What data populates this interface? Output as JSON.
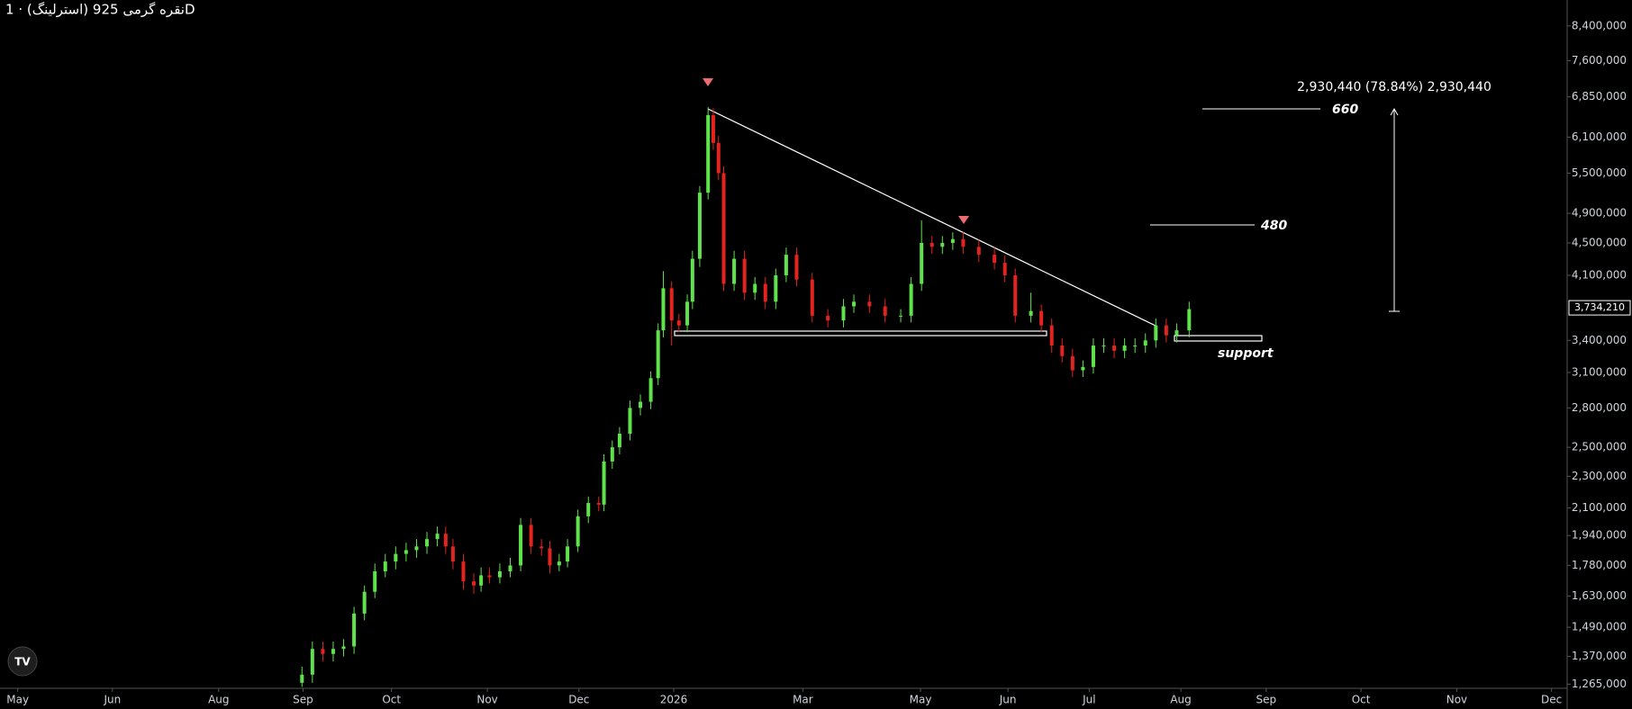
{
  "chart_data": {
    "type": "candlestick",
    "title": "نقره گرمی 925 (استرلینگ) · 1D",
    "log_scale": true,
    "up_color": "#5fe34a",
    "down_color": "#e3231f",
    "xlim": [
      0,
      1505
    ],
    "ylim": [
      1250000,
      9050000
    ],
    "xticks": [
      {
        "value": 17,
        "label": "May"
      },
      {
        "value": 108,
        "label": "Jun"
      },
      {
        "value": 210,
        "label": "Aug"
      },
      {
        "value": 291,
        "label": "Sep"
      },
      {
        "value": 376,
        "label": "Oct"
      },
      {
        "value": 468,
        "label": "Nov"
      },
      {
        "value": 556,
        "label": "Dec"
      },
      {
        "value": 647,
        "label": "2026"
      },
      {
        "value": 771,
        "label": "Mar"
      },
      {
        "value": 884,
        "label": "May"
      },
      {
        "value": 968,
        "label": "Jun"
      },
      {
        "value": 1046,
        "label": "Jul"
      },
      {
        "value": 1134,
        "label": "Aug"
      },
      {
        "value": 1216,
        "label": "Sep"
      },
      {
        "value": 1307,
        "label": "Oct"
      },
      {
        "value": 1399,
        "label": "Nov"
      },
      {
        "value": 1490,
        "label": "Dec"
      }
    ],
    "yticks": [
      {
        "value": 1265000,
        "label": "1,265,000"
      },
      {
        "value": 1370000,
        "label": "1,370,000"
      },
      {
        "value": 1490000,
        "label": "1,490,000"
      },
      {
        "value": 1630000,
        "label": "1,630,000"
      },
      {
        "value": 1780000,
        "label": "1,780,000"
      },
      {
        "value": 1940000,
        "label": "1,940,000"
      },
      {
        "value": 2100000,
        "label": "2,100,000"
      },
      {
        "value": 2300000,
        "label": "2,300,000"
      },
      {
        "value": 2500000,
        "label": "2,500,000"
      },
      {
        "value": 2800000,
        "label": "2,800,000"
      },
      {
        "value": 3100000,
        "label": "3,100,000"
      },
      {
        "value": 3400000,
        "label": "3,400,000"
      },
      {
        "value": 4100000,
        "label": "4,100,000"
      },
      {
        "value": 4500000,
        "label": "4,500,000"
      },
      {
        "value": 4900000,
        "label": "4,900,000"
      },
      {
        "value": 5500000,
        "label": "5,500,000"
      },
      {
        "value": 6100000,
        "label": "6,100,000"
      },
      {
        "value": 6850000,
        "label": "6,850,000"
      },
      {
        "value": 7600000,
        "label": "7,600,000"
      },
      {
        "value": 8400000,
        "label": "8,400,000"
      }
    ],
    "last_price": {
      "value": 3734210,
      "label": "3,734,210"
    },
    "annotations": {
      "measure": "2,930,440 (78.84%) 2,930,440",
      "level_high": "660",
      "level_mid": "480",
      "support": "support"
    },
    "x": [
      290,
      300,
      310,
      320,
      330,
      340,
      350,
      360,
      370,
      380,
      390,
      400,
      410,
      420,
      428,
      435,
      445,
      455,
      462,
      470,
      480,
      490,
      500,
      510,
      520,
      528,
      537,
      545,
      555,
      565,
      575,
      580,
      588,
      595,
      605,
      615,
      625,
      632,
      637,
      645,
      652,
      660,
      665,
      672,
      680,
      685,
      690,
      695,
      705,
      715,
      725,
      735,
      745,
      755,
      765,
      780,
      795,
      810,
      820,
      835,
      850,
      865,
      875,
      885,
      895,
      905,
      915,
      925,
      940,
      955,
      965,
      975,
      990,
      1000,
      1010,
      1020,
      1030,
      1040,
      1050,
      1060,
      1070,
      1080,
      1090,
      1100,
      1110,
      1120,
      1130,
      1142
    ],
    "open": [
      1270000,
      1300000,
      1400000,
      1380000,
      1400000,
      1410000,
      1550000,
      1650000,
      1750000,
      1800000,
      1840000,
      1860000,
      1880000,
      1920000,
      1950000,
      1880000,
      1800000,
      1700000,
      1680000,
      1730000,
      1720000,
      1750000,
      1780000,
      2000000,
      1880000,
      1870000,
      1780000,
      1800000,
      1880000,
      2050000,
      2130000,
      2120000,
      2400000,
      2500000,
      2600000,
      2800000,
      2850000,
      3050000,
      3500000,
      3950000,
      3600000,
      3550000,
      3800000,
      4300000,
      5200000,
      6500000,
      6000000,
      5500000,
      4000000,
      4300000,
      3900000,
      4000000,
      3800000,
      4100000,
      4350000,
      4050000,
      3650000,
      3600000,
      3750000,
      3800000,
      3750000,
      3650000,
      3650000,
      4000000,
      4500000,
      4450000,
      4500000,
      4550000,
      4450000,
      4350000,
      4250000,
      4100000,
      3650000,
      3700000,
      3550000,
      3350000,
      3250000,
      3120000,
      3150000,
      3350000,
      3350000,
      3300000,
      3350000,
      3350000,
      3400000,
      3550000,
      3450000,
      3500000
    ],
    "high": [
      1330000,
      1430000,
      1430000,
      1430000,
      1440000,
      1580000,
      1680000,
      1790000,
      1840000,
      1880000,
      1900000,
      1920000,
      1960000,
      1990000,
      1990000,
      1920000,
      1840000,
      1740000,
      1770000,
      1770000,
      1790000,
      1820000,
      2040000,
      2040000,
      1920000,
      1910000,
      1840000,
      1920000,
      2090000,
      2170000,
      2170000,
      2450000,
      2550000,
      2650000,
      2860000,
      2910000,
      3110000,
      3570000,
      4150000,
      4030000,
      3670000,
      3880000,
      4400000,
      5300000,
      6650000,
      6630000,
      6120000,
      5610000,
      4400000,
      4400000,
      4080000,
      4080000,
      4180000,
      4440000,
      4440000,
      4130000,
      3720000,
      3830000,
      3880000,
      3880000,
      3830000,
      3720000,
      4080000,
      4800000,
      4590000,
      4590000,
      4640000,
      4640000,
      4540000,
      4440000,
      4340000,
      4180000,
      3900000,
      3770000,
      3620000,
      3420000,
      3320000,
      3210000,
      3420000,
      3420000,
      3420000,
      3420000,
      3420000,
      3470000,
      3620000,
      3620000,
      3570000,
      3800000
    ],
    "low": [
      1255000,
      1270000,
      1350000,
      1350000,
      1370000,
      1380000,
      1520000,
      1620000,
      1720000,
      1760000,
      1800000,
      1820000,
      1840000,
      1880000,
      1840000,
      1760000,
      1660000,
      1640000,
      1650000,
      1690000,
      1690000,
      1720000,
      1750000,
      1840000,
      1830000,
      1740000,
      1750000,
      1770000,
      1850000,
      2010000,
      2080000,
      2080000,
      2350000,
      2450000,
      2550000,
      2740000,
      2790000,
      2990000,
      3430000,
      3350000,
      3480000,
      3480000,
      3720000,
      4200000,
      5100000,
      5880000,
      5390000,
      3920000,
      3920000,
      3820000,
      3820000,
      3720000,
      3720000,
      4020000,
      3970000,
      3580000,
      3530000,
      3530000,
      3680000,
      3680000,
      3580000,
      3580000,
      3580000,
      3920000,
      4360000,
      4360000,
      4410000,
      4360000,
      4260000,
      4170000,
      4020000,
      3580000,
      3580000,
      3480000,
      3280000,
      3190000,
      3060000,
      3060000,
      3090000,
      3280000,
      3230000,
      3230000,
      3280000,
      3280000,
      3330000,
      3380000,
      3380000,
      3430000
    ],
    "close": [
      1300000,
      1400000,
      1380000,
      1400000,
      1410000,
      1550000,
      1650000,
      1750000,
      1800000,
      1840000,
      1860000,
      1880000,
      1920000,
      1950000,
      1880000,
      1800000,
      1700000,
      1680000,
      1730000,
      1720000,
      1750000,
      1780000,
      2000000,
      1880000,
      1870000,
      1780000,
      1800000,
      1880000,
      2050000,
      2130000,
      2120000,
      2400000,
      2500000,
      2600000,
      2800000,
      2850000,
      3050000,
      3500000,
      3950000,
      3600000,
      3550000,
      3800000,
      4300000,
      5200000,
      6500000,
      6000000,
      5500000,
      4000000,
      4300000,
      3900000,
      4000000,
      3800000,
      4100000,
      4350000,
      4050000,
      3650000,
      3600000,
      3750000,
      3800000,
      3750000,
      3650000,
      3650000,
      4000000,
      4500000,
      4450000,
      4500000,
      4550000,
      4450000,
      4350000,
      4250000,
      4100000,
      3650000,
      3700000,
      3550000,
      3350000,
      3250000,
      3120000,
      3150000,
      3350000,
      3350000,
      3300000,
      3350000,
      3350000,
      3400000,
      3550000,
      3450000,
      3500000,
      3720000
    ]
  }
}
